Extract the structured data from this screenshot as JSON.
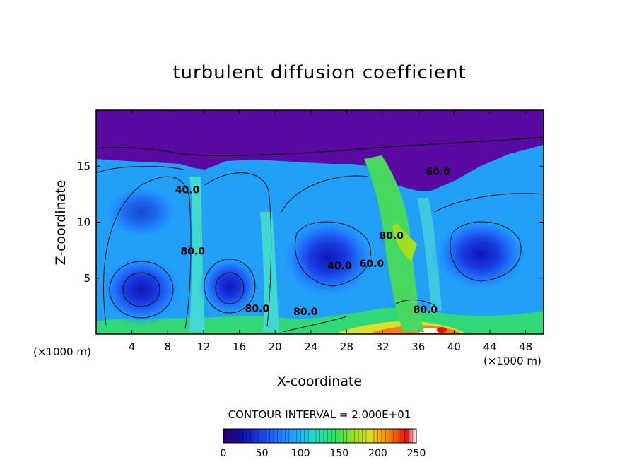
{
  "chart_data": {
    "type": "heatmap",
    "title": "turbulent diffusion coefficient",
    "xlabel": "X-coordinate",
    "ylabel": "Z-coordinate",
    "x_unit": "(×1000 m)",
    "z_unit": "(×1000 m)",
    "xlim": [
      0,
      50
    ],
    "ylim": [
      0,
      20
    ],
    "x_ticks": [
      4,
      8,
      12,
      16,
      20,
      24,
      28,
      32,
      36,
      40,
      44,
      48
    ],
    "y_ticks": [
      5,
      10,
      15
    ],
    "contour_interval_text": "CONTOUR INTERVAL = 2.000E+01",
    "contour_labels": [
      {
        "text": "40.0",
        "x": 10.2,
        "z": 12.6
      },
      {
        "text": "80.0",
        "x": 10.8,
        "z": 7.1
      },
      {
        "text": "80.0",
        "x": 18.0,
        "z": 2.0
      },
      {
        "text": "80.0",
        "x": 23.4,
        "z": 1.7
      },
      {
        "text": "40.0",
        "x": 27.2,
        "z": 5.8
      },
      {
        "text": "60.0",
        "x": 30.8,
        "z": 6.0
      },
      {
        "text": "60.0",
        "x": 38.2,
        "z": 14.2
      },
      {
        "text": "80.0",
        "x": 36.8,
        "z": 1.9
      },
      {
        "text": "80.0",
        "x": 33.0,
        "z": 8.5
      }
    ],
    "colorbar": {
      "min": 0,
      "max": 250,
      "tick_values": [
        0,
        50,
        100,
        150,
        200,
        250
      ],
      "colors": [
        "#2a0070",
        "#1010b0",
        "#2060ff",
        "#20b0ff",
        "#20e0c0",
        "#30e060",
        "#a0e020",
        "#e0e020",
        "#ff8000",
        "#e01010",
        "#ffffff"
      ]
    }
  }
}
